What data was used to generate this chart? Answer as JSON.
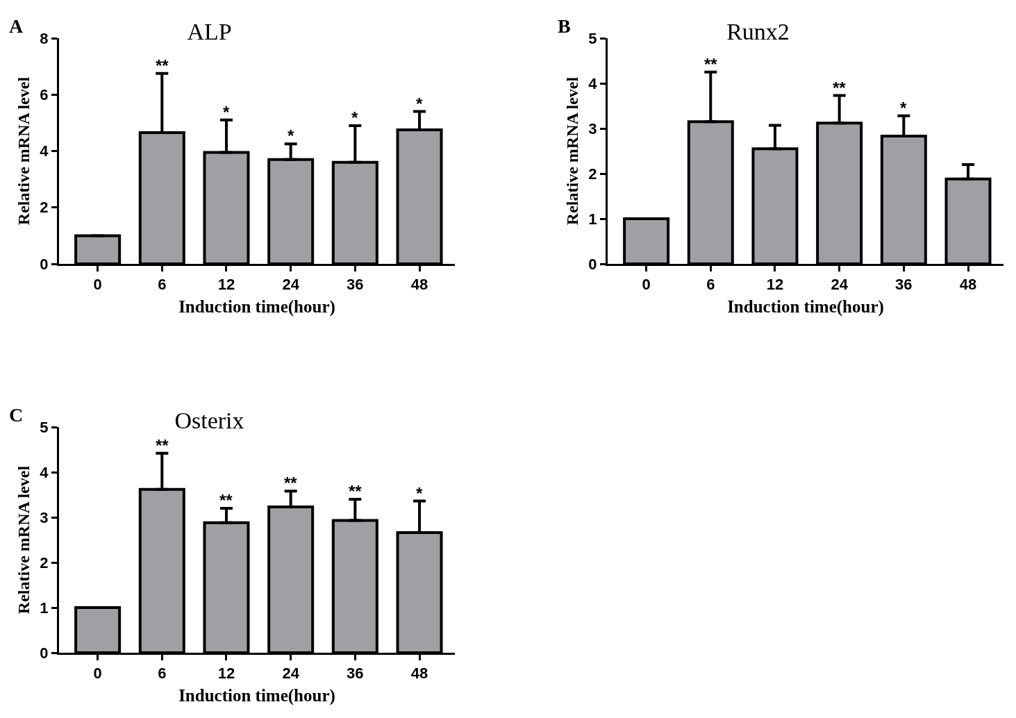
{
  "chart_data": [
    {
      "type": "bar",
      "title": "ALP",
      "xlabel": "Induction time(hour)",
      "ylabel": "Relative mRNA level",
      "categories": [
        "0",
        "6",
        "12",
        "24",
        "36",
        "48"
      ],
      "values": [
        1,
        4.65,
        3.95,
        3.7,
        3.6,
        4.75
      ],
      "color": "#a0a0a4",
      "errors": [
        null,
        [
          4.65,
          6.75
        ],
        [
          3.95,
          5.1
        ],
        [
          3.7,
          4.25
        ],
        [
          3.6,
          4.9
        ],
        [
          4.75,
          5.4
        ]
      ],
      "ylim": [
        0,
        8
      ],
      "yticks": [
        0,
        2,
        4,
        6,
        8
      ],
      "grid": false,
      "annotations": [
        "A",
        {
          "text": "**",
          "x": "6",
          "y": 6.75
        },
        {
          "text": "*",
          "x": "12",
          "y": 5.1
        },
        {
          "text": "*",
          "x": "24",
          "y": 4.25
        },
        {
          "text": "*",
          "x": "36",
          "y": 4.9
        },
        {
          "text": "*",
          "x": "48",
          "y": 5.4
        }
      ]
    },
    {
      "type": "bar",
      "title": "Runx2",
      "xlabel": "Induction time(hour)",
      "ylabel": "Relative mRNA level",
      "categories": [
        "0",
        "6",
        "12",
        "24",
        "36",
        "48"
      ],
      "values": [
        1,
        3.15,
        2.55,
        3.12,
        2.83,
        1.88
      ],
      "color": "#a0a0a4",
      "errors": [
        null,
        [
          3.15,
          4.25
        ],
        [
          2.55,
          3.07
        ],
        [
          3.12,
          3.73
        ],
        [
          2.83,
          3.28
        ],
        [
          1.88,
          2.2
        ]
      ],
      "ylim": [
        0,
        5
      ],
      "yticks": [
        0,
        1,
        2,
        3,
        4,
        5
      ],
      "grid": false,
      "annotations": [
        "B",
        {
          "text": "**",
          "x": "6",
          "y": 4.25
        },
        {
          "text": "**",
          "x": "24",
          "y": 3.73
        },
        {
          "text": "*",
          "x": "36",
          "y": 3.28
        }
      ]
    },
    {
      "type": "bar",
      "title": "Osterix",
      "xlabel": "Induction time(hour)",
      "ylabel": "Relative mRNA level",
      "categories": [
        "0",
        "6",
        "12",
        "24",
        "36",
        "48"
      ],
      "values": [
        1,
        3.62,
        2.88,
        3.23,
        2.93,
        2.66
      ],
      "color": "#a0a0a4",
      "errors": [
        null,
        [
          3.62,
          4.42
        ],
        [
          2.88,
          3.2
        ],
        [
          3.23,
          3.58
        ],
        [
          2.93,
          3.4
        ],
        [
          2.66,
          3.36
        ]
      ],
      "ylim": [
        0,
        5
      ],
      "yticks": [
        0,
        1,
        2,
        3,
        4,
        5
      ],
      "grid": false,
      "annotations": [
        "C",
        {
          "text": "**",
          "x": "6",
          "y": 4.42
        },
        {
          "text": "**",
          "x": "12",
          "y": 3.2
        },
        {
          "text": "**",
          "x": "24",
          "y": 3.58
        },
        {
          "text": "**",
          "x": "36",
          "y": 3.4
        },
        {
          "text": "*",
          "x": "48",
          "y": 3.36
        }
      ]
    }
  ]
}
